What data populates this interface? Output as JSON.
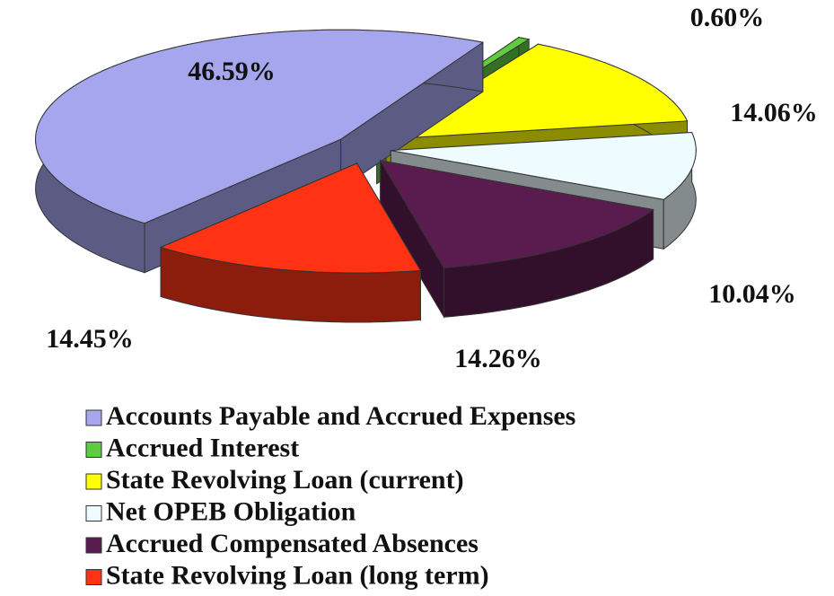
{
  "chart_data": {
    "type": "pie3d",
    "categories": [
      "Accounts Payable and Accrued Expenses",
      "Accrued Interest",
      "State Revolving Loan (current)",
      "Net OPEB Obligation",
      "Accrued Compensated Absences",
      "State Revolving Loan (long term)"
    ],
    "values": [
      46.59,
      0.6,
      14.06,
      10.04,
      14.26,
      14.45
    ],
    "value_labels": [
      "46.59%",
      "0.60%",
      "14.06%",
      "10.04%",
      "14.26%",
      "14.45%"
    ],
    "colors": [
      "#a6a6ee",
      "#5fcc3f",
      "#ffff00",
      "#eefcff",
      "#5a1c4e",
      "#ff3314"
    ],
    "legend": "bottom"
  }
}
